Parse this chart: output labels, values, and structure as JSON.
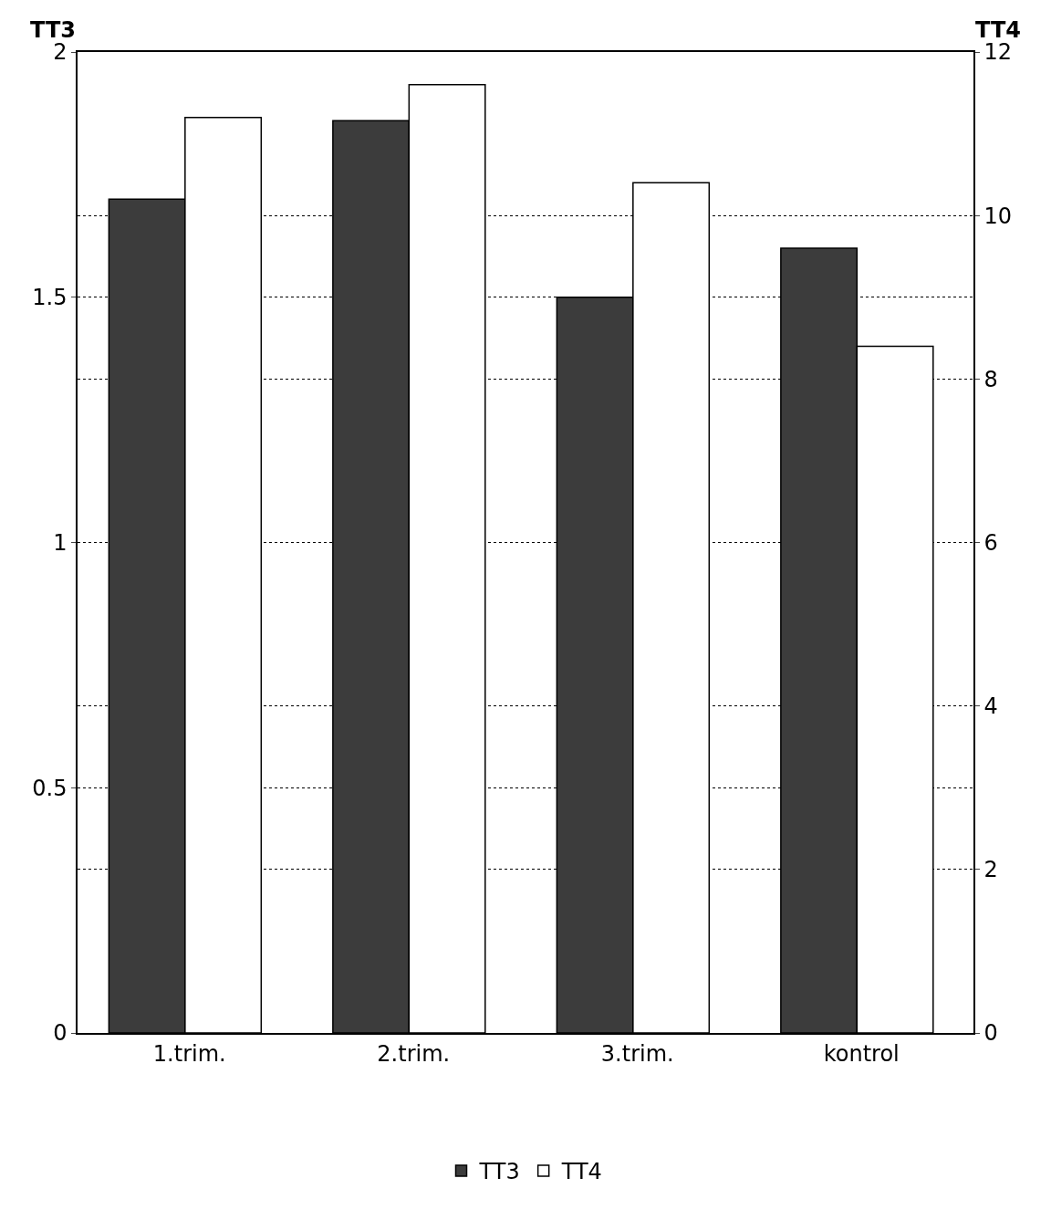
{
  "chart_data": {
    "type": "bar",
    "categories": [
      "1.trim.",
      "2.trim.",
      "3.trim.",
      "kontrol"
    ],
    "ylabel": "TT3",
    "y2label": "TT4",
    "series": [
      {
        "name": "TT3",
        "color": "#3c3c3c",
        "values": [
          1.7,
          1.86,
          1.5,
          1.6
        ]
      },
      {
        "name": "TT4",
        "color": "#ffffff",
        "axis": "y2",
        "values": [
          11.2,
          11.6,
          10.4,
          8.4
        ]
      }
    ],
    "ylim": [
      0,
      2
    ],
    "yticks": [
      0,
      0.5,
      1,
      1.5,
      2
    ],
    "y2lim": [
      0,
      12
    ],
    "y2ticks": [
      0,
      2,
      4,
      6,
      8,
      10,
      12
    ],
    "grid": "y",
    "legend": "bottom"
  }
}
